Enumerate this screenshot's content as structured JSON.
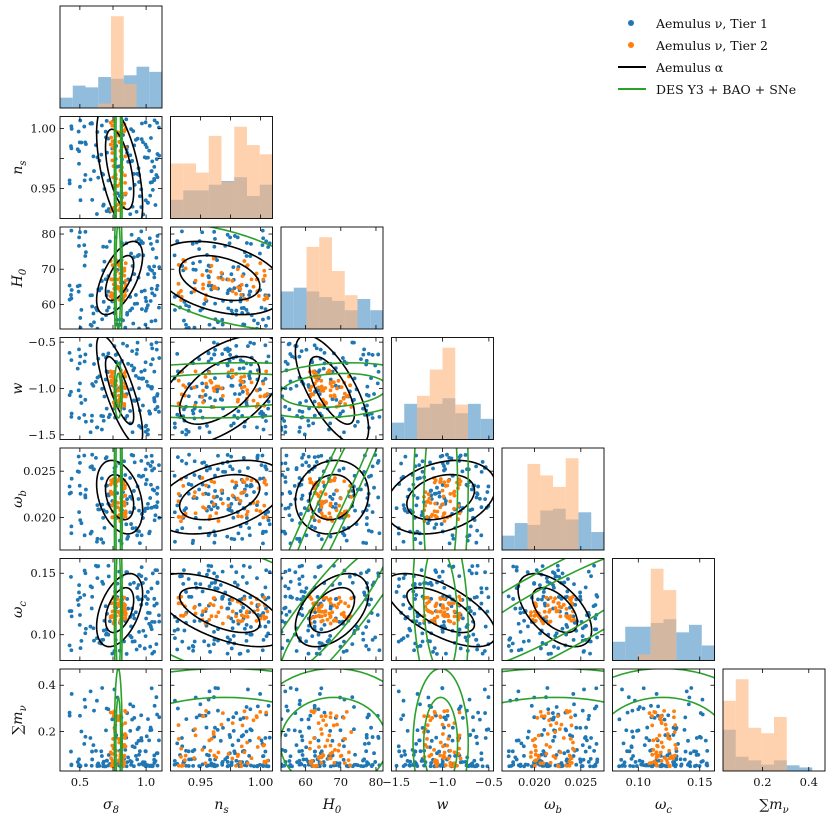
{
  "chart_data": {
    "type": "corner",
    "params": [
      {
        "key": "s8",
        "label": "σ",
        "sub": "8",
        "range": [
          0.35,
          1.12
        ],
        "ticks": [
          0.5,
          0.75,
          1.0
        ],
        "ticklabels": [
          "0.5",
          "",
          "1.0"
        ]
      },
      {
        "key": "ns",
        "label": "n",
        "sub": "s",
        "range": [
          0.925,
          1.01
        ],
        "ticks": [
          0.95,
          0.975,
          1.0
        ],
        "ticklabels": [
          "0.95",
          "",
          "1.00"
        ]
      },
      {
        "key": "H0",
        "label": "H",
        "sub": "0",
        "range": [
          53,
          82
        ],
        "ticks": [
          60,
          70,
          80
        ],
        "ticklabels": [
          "60",
          "70",
          "80"
        ]
      },
      {
        "key": "w",
        "label": "w",
        "sub": "",
        "range": [
          -1.55,
          -0.45
        ],
        "ticks": [
          -1.5,
          -1.0,
          -0.5
        ],
        "ticklabels": [
          "−1.5",
          "−1.0",
          "−0.5"
        ]
      },
      {
        "key": "ob",
        "label": "ω",
        "sub": "b",
        "range": [
          0.0165,
          0.0275
        ],
        "ticks": [
          0.02,
          0.025
        ],
        "ticklabels": [
          "0.020",
          "0.025"
        ]
      },
      {
        "key": "oc",
        "label": "ω",
        "sub": "c",
        "range": [
          0.079,
          0.162
        ],
        "ticks": [
          0.1,
          0.15
        ],
        "ticklabels": [
          "0.10",
          "0.15"
        ]
      },
      {
        "key": "mnu",
        "label": "∑m",
        "sub": "ν",
        "range": [
          0.03,
          0.47
        ],
        "ticks": [
          0.2,
          0.4
        ],
        "ticklabels": [
          "0.2",
          "0.4"
        ]
      }
    ],
    "tier1": {
      "center": [
        0.76,
        0.968,
        67,
        -1.0,
        0.022,
        0.12,
        0.18
      ],
      "halfwidth": [
        0.34,
        0.04,
        14,
        0.5,
        0.0048,
        0.037,
        0.2
      ]
    },
    "tier2": {
      "center": [
        0.79,
        0.968,
        67,
        -1.0,
        0.022,
        0.12,
        0.15
      ],
      "halfwidth": [
        0.06,
        0.038,
        6,
        0.2,
        0.0025,
        0.011,
        0.12
      ]
    },
    "aemulus_alpha": {
      "center": [
        0.8,
        0.966,
        67.5,
        -1.02,
        0.0222,
        0.12
      ],
      "sigma": [
        0.07,
        0.022,
        4.2,
        0.24,
        0.0016,
        0.012
      ],
      "corr": {
        "s8-ns": -0.55,
        "s8-H0": 0.6,
        "s8-w": -0.78,
        "s8-ob": -0.35,
        "s8-oc": 0.45,
        "ns-H0": -0.35,
        "ns-w": 0.55,
        "ns-ob": 0.4,
        "ns-oc": -0.6,
        "H0-w": -0.7,
        "H0-ob": 0.1,
        "H0-oc": 0.45,
        "w-ob": 0.3,
        "w-oc": -0.65,
        "ob-oc": -0.55
      }
    },
    "des_y3": {
      "center": [
        0.79,
        0.97,
        68,
        -1.02,
        0.0222,
        0.12,
        0.15
      ],
      "sigma": [
        0.012,
        0.06,
        10,
        0.12,
        0.008,
        0.035,
        0.13
      ],
      "corr": {
        "ns-H0": -0.5,
        "ns-w": 0.1,
        "ns-ob": 0.3,
        "ns-oc": -0.3,
        "H0-w": 0.2,
        "H0-ob": 0.97,
        "H0-oc": 0.9,
        "w-ob": 0.1,
        "w-oc": -0.2,
        "ob-oc": 0.9
      }
    },
    "legend": [
      {
        "label": "Aemulus ν, Tier 1",
        "kind": "point",
        "color": "#1f77b4"
      },
      {
        "label": "Aemulus ν, Tier 2",
        "kind": "point",
        "color": "#ff7f0e"
      },
      {
        "label": "Aemulus α",
        "kind": "line",
        "color": "#000000"
      },
      {
        "label": "DES Y3 + BAO + SNe",
        "kind": "line",
        "color": "#2ca02c"
      }
    ],
    "colors": {
      "tier1": "#1f77b4",
      "tier2": "#ff7f0e",
      "alpha": "#000000",
      "des": "#2ca02c",
      "hist1": "#7fb0d6",
      "hist2": "#ffb47a"
    }
  }
}
